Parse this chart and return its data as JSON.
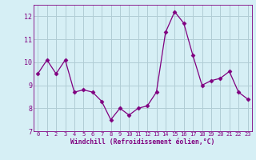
{
  "x": [
    0,
    1,
    2,
    3,
    4,
    5,
    6,
    7,
    8,
    9,
    10,
    11,
    12,
    13,
    14,
    15,
    16,
    17,
    18,
    19,
    20,
    21,
    22,
    23
  ],
  "y": [
    9.5,
    10.1,
    9.5,
    10.1,
    8.7,
    8.8,
    8.7,
    8.3,
    7.5,
    8.0,
    7.7,
    8.0,
    8.1,
    8.7,
    11.3,
    12.2,
    11.7,
    10.3,
    9.0,
    9.2,
    9.3,
    9.6,
    8.7,
    8.4
  ],
  "line_color": "#800080",
  "marker": "D",
  "marker_size": 2.5,
  "bg_color": "#d6eff5",
  "grid_color": "#b0ccd4",
  "xlabel": "Windchill (Refroidissement éolien,°C)",
  "xlabel_color": "#800080",
  "tick_color": "#800080",
  "ylim": [
    7,
    12.5
  ],
  "yticks": [
    7,
    8,
    9,
    10,
    11,
    12
  ],
  "xlim": [
    -0.5,
    23.5
  ],
  "xticks": [
    0,
    1,
    2,
    3,
    4,
    5,
    6,
    7,
    8,
    9,
    10,
    11,
    12,
    13,
    14,
    15,
    16,
    17,
    18,
    19,
    20,
    21,
    22,
    23
  ]
}
